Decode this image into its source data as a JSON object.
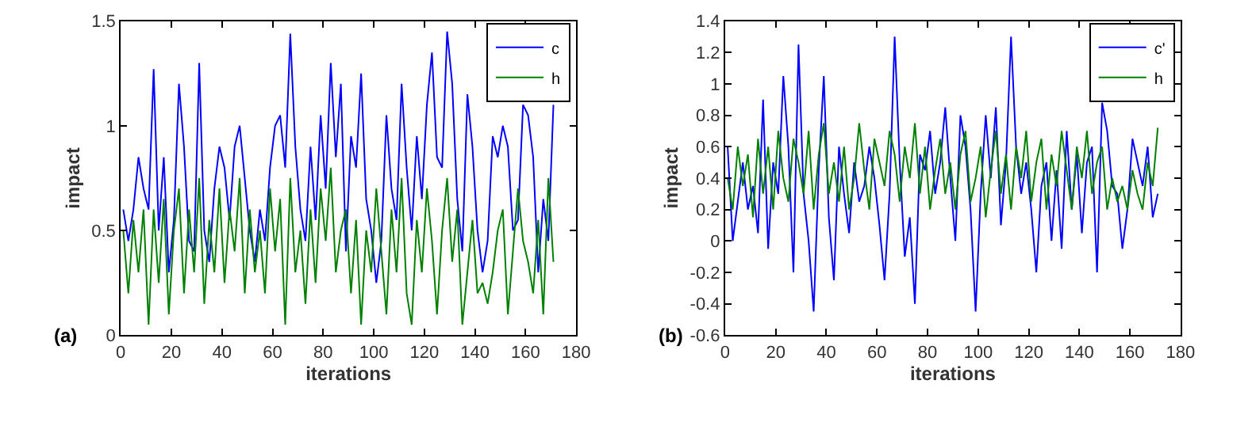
{
  "chart_data": [
    {
      "type": "line",
      "xlabel": "iterations",
      "ylabel": "impact",
      "annotations": [
        "(a)"
      ],
      "legend": "top right",
      "xlim": [
        0,
        180
      ],
      "xticks": [
        0,
        20,
        40,
        60,
        80,
        100,
        120,
        140,
        160,
        180
      ],
      "ylim": [
        0,
        1.5
      ],
      "yticks": [
        0,
        0.5,
        1,
        1.5
      ],
      "x": [
        1,
        3,
        5,
        7,
        9,
        11,
        13,
        15,
        17,
        19,
        21,
        23,
        25,
        27,
        29,
        31,
        33,
        35,
        37,
        39,
        41,
        43,
        45,
        47,
        49,
        51,
        53,
        55,
        57,
        59,
        61,
        63,
        65,
        67,
        69,
        71,
        73,
        75,
        77,
        79,
        81,
        83,
        85,
        87,
        89,
        91,
        93,
        95,
        97,
        99,
        101,
        103,
        105,
        107,
        109,
        111,
        113,
        115,
        117,
        119,
        121,
        123,
        125,
        127,
        129,
        131,
        133,
        135,
        137,
        139,
        141,
        143,
        145,
        147,
        149,
        151,
        153,
        155,
        157,
        159,
        161,
        163,
        165,
        167,
        169,
        171
      ],
      "series": [
        {
          "name": "c",
          "color": "#0000ff",
          "values": [
            0.6,
            0.45,
            0.6,
            0.85,
            0.7,
            0.6,
            1.27,
            0.5,
            0.85,
            0.3,
            0.55,
            1.2,
            0.9,
            0.45,
            0.4,
            1.3,
            0.5,
            0.35,
            0.7,
            0.9,
            0.8,
            0.55,
            0.9,
            1.0,
            0.75,
            0.5,
            0.35,
            0.6,
            0.45,
            0.8,
            1.0,
            1.05,
            0.8,
            1.44,
            0.9,
            0.6,
            0.45,
            0.9,
            0.55,
            1.05,
            0.7,
            1.3,
            0.85,
            1.2,
            0.4,
            0.95,
            0.8,
            1.25,
            0.65,
            0.5,
            0.25,
            0.45,
            1.05,
            0.7,
            0.55,
            1.2,
            0.8,
            0.5,
            0.95,
            0.65,
            1.1,
            1.35,
            0.85,
            0.8,
            1.45,
            1.2,
            0.65,
            0.4,
            1.15,
            0.9,
            0.5,
            0.3,
            0.45,
            0.95,
            0.85,
            1.0,
            0.9,
            0.5,
            0.55,
            1.1,
            1.05,
            0.85,
            0.3,
            0.65,
            0.45,
            1.1
          ]
        },
        {
          "name": "h",
          "color": "#008000",
          "values": [
            0.5,
            0.2,
            0.55,
            0.3,
            0.6,
            0.05,
            0.6,
            0.25,
            0.65,
            0.1,
            0.5,
            0.7,
            0.2,
            0.6,
            0.3,
            0.75,
            0.15,
            0.55,
            0.3,
            0.7,
            0.25,
            0.6,
            0.4,
            0.75,
            0.2,
            0.6,
            0.3,
            0.5,
            0.2,
            0.7,
            0.4,
            0.65,
            0.05,
            0.75,
            0.3,
            0.5,
            0.15,
            0.6,
            0.25,
            0.7,
            0.45,
            0.8,
            0.3,
            0.5,
            0.6,
            0.2,
            0.55,
            0.05,
            0.5,
            0.3,
            0.7,
            0.4,
            0.1,
            0.6,
            0.3,
            0.75,
            0.2,
            0.05,
            0.55,
            0.3,
            0.7,
            0.45,
            0.1,
            0.5,
            0.75,
            0.35,
            0.6,
            0.05,
            0.3,
            0.55,
            0.2,
            0.25,
            0.15,
            0.3,
            0.5,
            0.6,
            0.1,
            0.4,
            0.7,
            0.45,
            0.35,
            0.2,
            0.55,
            0.1,
            0.75,
            0.35
          ]
        }
      ]
    },
    {
      "type": "line",
      "xlabel": "iterations",
      "ylabel": "impact",
      "annotations": [
        "(b)"
      ],
      "legend": "top right",
      "xlim": [
        0,
        180
      ],
      "xticks": [
        0,
        20,
        40,
        60,
        80,
        100,
        120,
        140,
        160,
        180
      ],
      "ylim": [
        -0.6,
        1.4
      ],
      "yticks": [
        -0.6,
        -0.4,
        -0.2,
        0,
        0.2,
        0.4,
        0.6,
        0.8,
        1,
        1.2,
        1.4
      ],
      "x": [
        1,
        3,
        5,
        7,
        9,
        11,
        13,
        15,
        17,
        19,
        21,
        23,
        25,
        27,
        29,
        31,
        33,
        35,
        37,
        39,
        41,
        43,
        45,
        47,
        49,
        51,
        53,
        55,
        57,
        59,
        61,
        63,
        65,
        67,
        69,
        71,
        73,
        75,
        77,
        79,
        81,
        83,
        85,
        87,
        89,
        91,
        93,
        95,
        97,
        99,
        101,
        103,
        105,
        107,
        109,
        111,
        113,
        115,
        117,
        119,
        121,
        123,
        125,
        127,
        129,
        131,
        133,
        135,
        137,
        139,
        141,
        143,
        145,
        147,
        149,
        151,
        153,
        155,
        157,
        159,
        161,
        163,
        165,
        167,
        169,
        171
      ],
      "series": [
        {
          "name": "c'",
          "color": "#0000ff",
          "values": [
            0.6,
            0.0,
            0.25,
            0.5,
            0.2,
            0.35,
            0.05,
            0.9,
            -0.05,
            0.5,
            0.3,
            1.05,
            0.6,
            -0.2,
            1.25,
            0.3,
            0.0,
            -0.45,
            0.45,
            1.05,
            0.15,
            -0.25,
            0.6,
            0.3,
            0.05,
            0.5,
            0.25,
            0.35,
            0.6,
            0.4,
            0.1,
            -0.25,
            0.3,
            1.3,
            0.5,
            -0.1,
            0.15,
            -0.4,
            0.55,
            0.45,
            0.7,
            0.3,
            0.5,
            0.85,
            0.4,
            0.0,
            0.8,
            0.6,
            0.2,
            -0.45,
            0.3,
            0.8,
            0.4,
            0.85,
            0.1,
            0.5,
            1.3,
            0.6,
            0.3,
            0.5,
            0.2,
            -0.2,
            0.35,
            0.5,
            0.0,
            0.45,
            -0.05,
            0.7,
            0.2,
            0.55,
            0.05,
            0.5,
            0.6,
            -0.2,
            0.88,
            0.7,
            0.35,
            0.3,
            -0.05,
            0.2,
            0.65,
            0.5,
            0.35,
            0.6,
            0.15,
            0.3
          ]
        },
        {
          "name": "h",
          "color": "#008000",
          "values": [
            0.4,
            0.2,
            0.6,
            0.35,
            0.55,
            0.15,
            0.65,
            0.3,
            0.6,
            0.2,
            0.7,
            0.4,
            0.25,
            0.65,
            0.5,
            0.3,
            0.7,
            0.2,
            0.55,
            0.75,
            0.3,
            0.5,
            0.25,
            0.6,
            0.2,
            0.4,
            0.75,
            0.45,
            0.2,
            0.65,
            0.5,
            0.35,
            0.7,
            0.55,
            0.25,
            0.6,
            0.4,
            0.75,
            0.3,
            0.6,
            0.2,
            0.45,
            0.65,
            0.3,
            0.5,
            0.2,
            0.55,
            0.7,
            0.25,
            0.4,
            0.6,
            0.15,
            0.45,
            0.7,
            0.3,
            0.55,
            0.2,
            0.6,
            0.4,
            0.7,
            0.25,
            0.5,
            0.65,
            0.2,
            0.55,
            0.35,
            0.7,
            0.45,
            0.2,
            0.6,
            0.4,
            0.7,
            0.3,
            0.5,
            0.6,
            0.2,
            0.4,
            0.25,
            0.35,
            0.2,
            0.45,
            0.3,
            0.2,
            0.5,
            0.35,
            0.72
          ]
        }
      ]
    }
  ]
}
